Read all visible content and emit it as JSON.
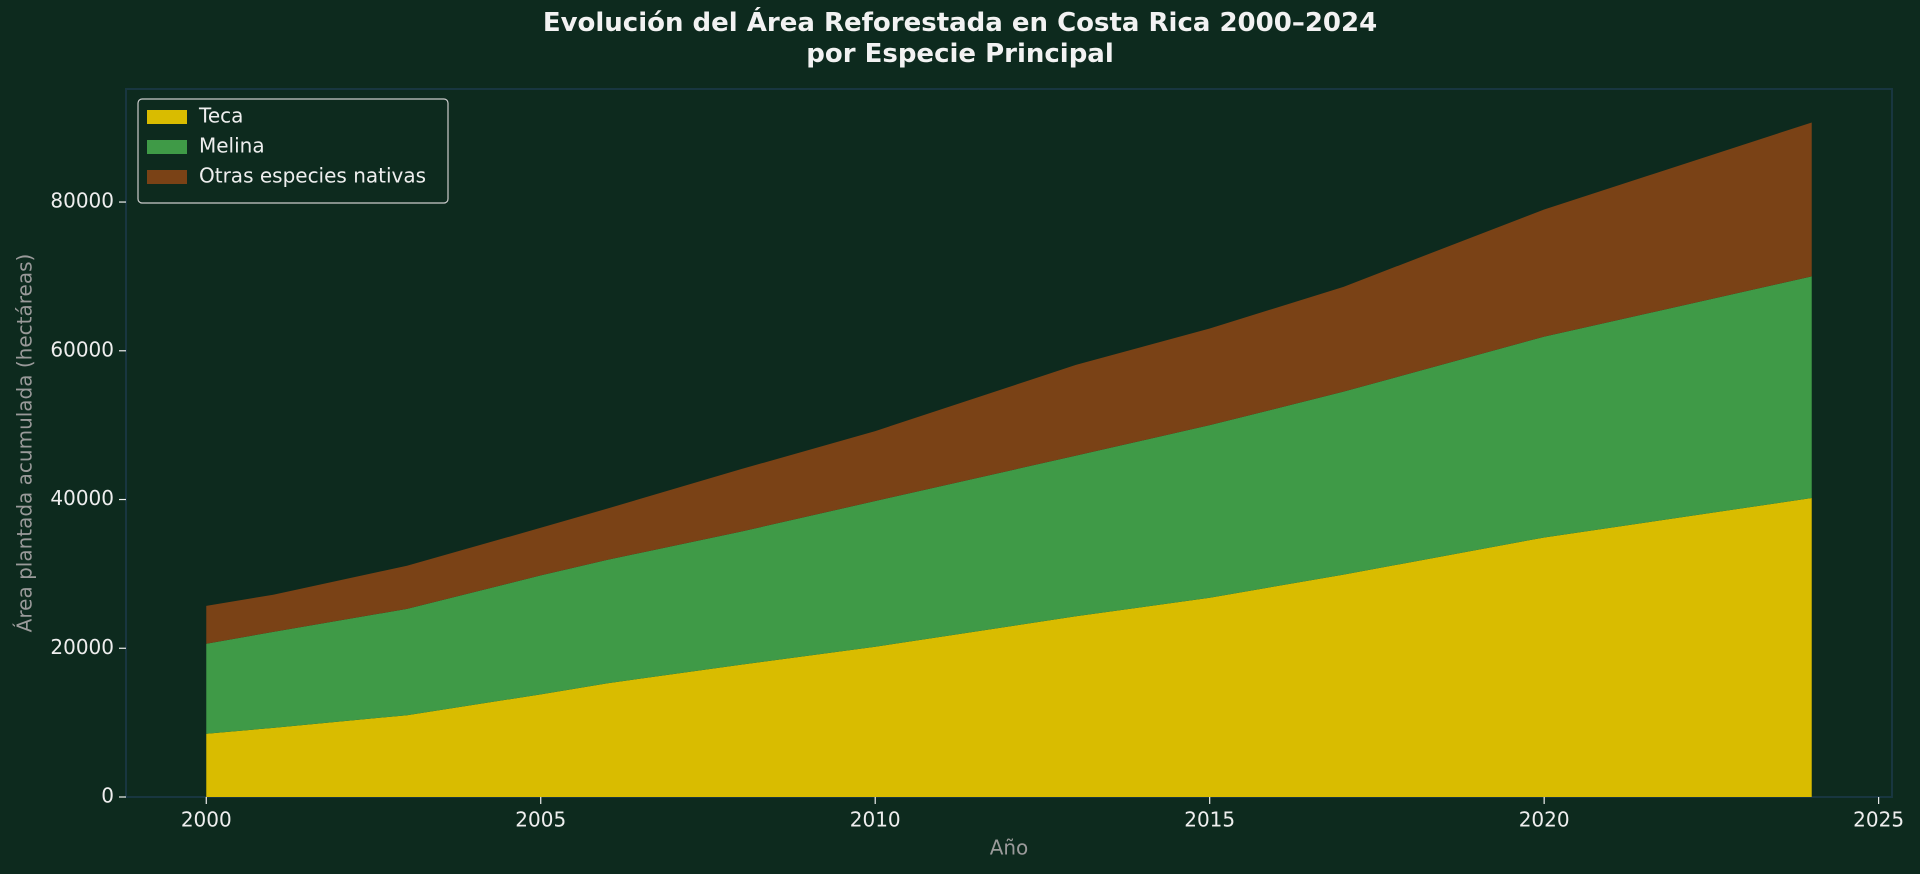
{
  "chart_data": {
    "type": "stacked_area",
    "title": "Evolución del Área Reforestada en Costa Rica 2000–2024\npor Especie Principal",
    "x_label": "Año",
    "y_label": "Área plantada acumulada (hectáreas)",
    "x": [
      2000,
      2001,
      2003,
      2005,
      2006,
      2008,
      2010,
      2013,
      2015,
      2017,
      2020,
      2024
    ],
    "series": [
      {
        "name": "Teca",
        "color": "#d9bc00",
        "values": [
          8500,
          9300,
          11000,
          13800,
          15300,
          17800,
          20200,
          24300,
          26800,
          29900,
          34900,
          40200
        ]
      },
      {
        "name": "Melina",
        "color": "#3f9a47",
        "values": [
          12100,
          12900,
          14300,
          16000,
          16600,
          17900,
          19600,
          21600,
          23200,
          24600,
          27000,
          29800
        ]
      },
      {
        "name": "Otras especies nativas",
        "color": "#7a4216",
        "values": [
          5100,
          5000,
          5800,
          6400,
          6900,
          8400,
          9400,
          12200,
          13000,
          14100,
          17100,
          20700
        ]
      }
    ],
    "xlim": [
      1998.8,
      2025.2
    ],
    "ylim": [
      0,
      95200
    ],
    "xticks": [
      2000,
      2005,
      2010,
      2015,
      2020,
      2025
    ],
    "yticks": [
      0,
      20000,
      40000,
      60000,
      80000
    ],
    "legend": "upper-left"
  }
}
